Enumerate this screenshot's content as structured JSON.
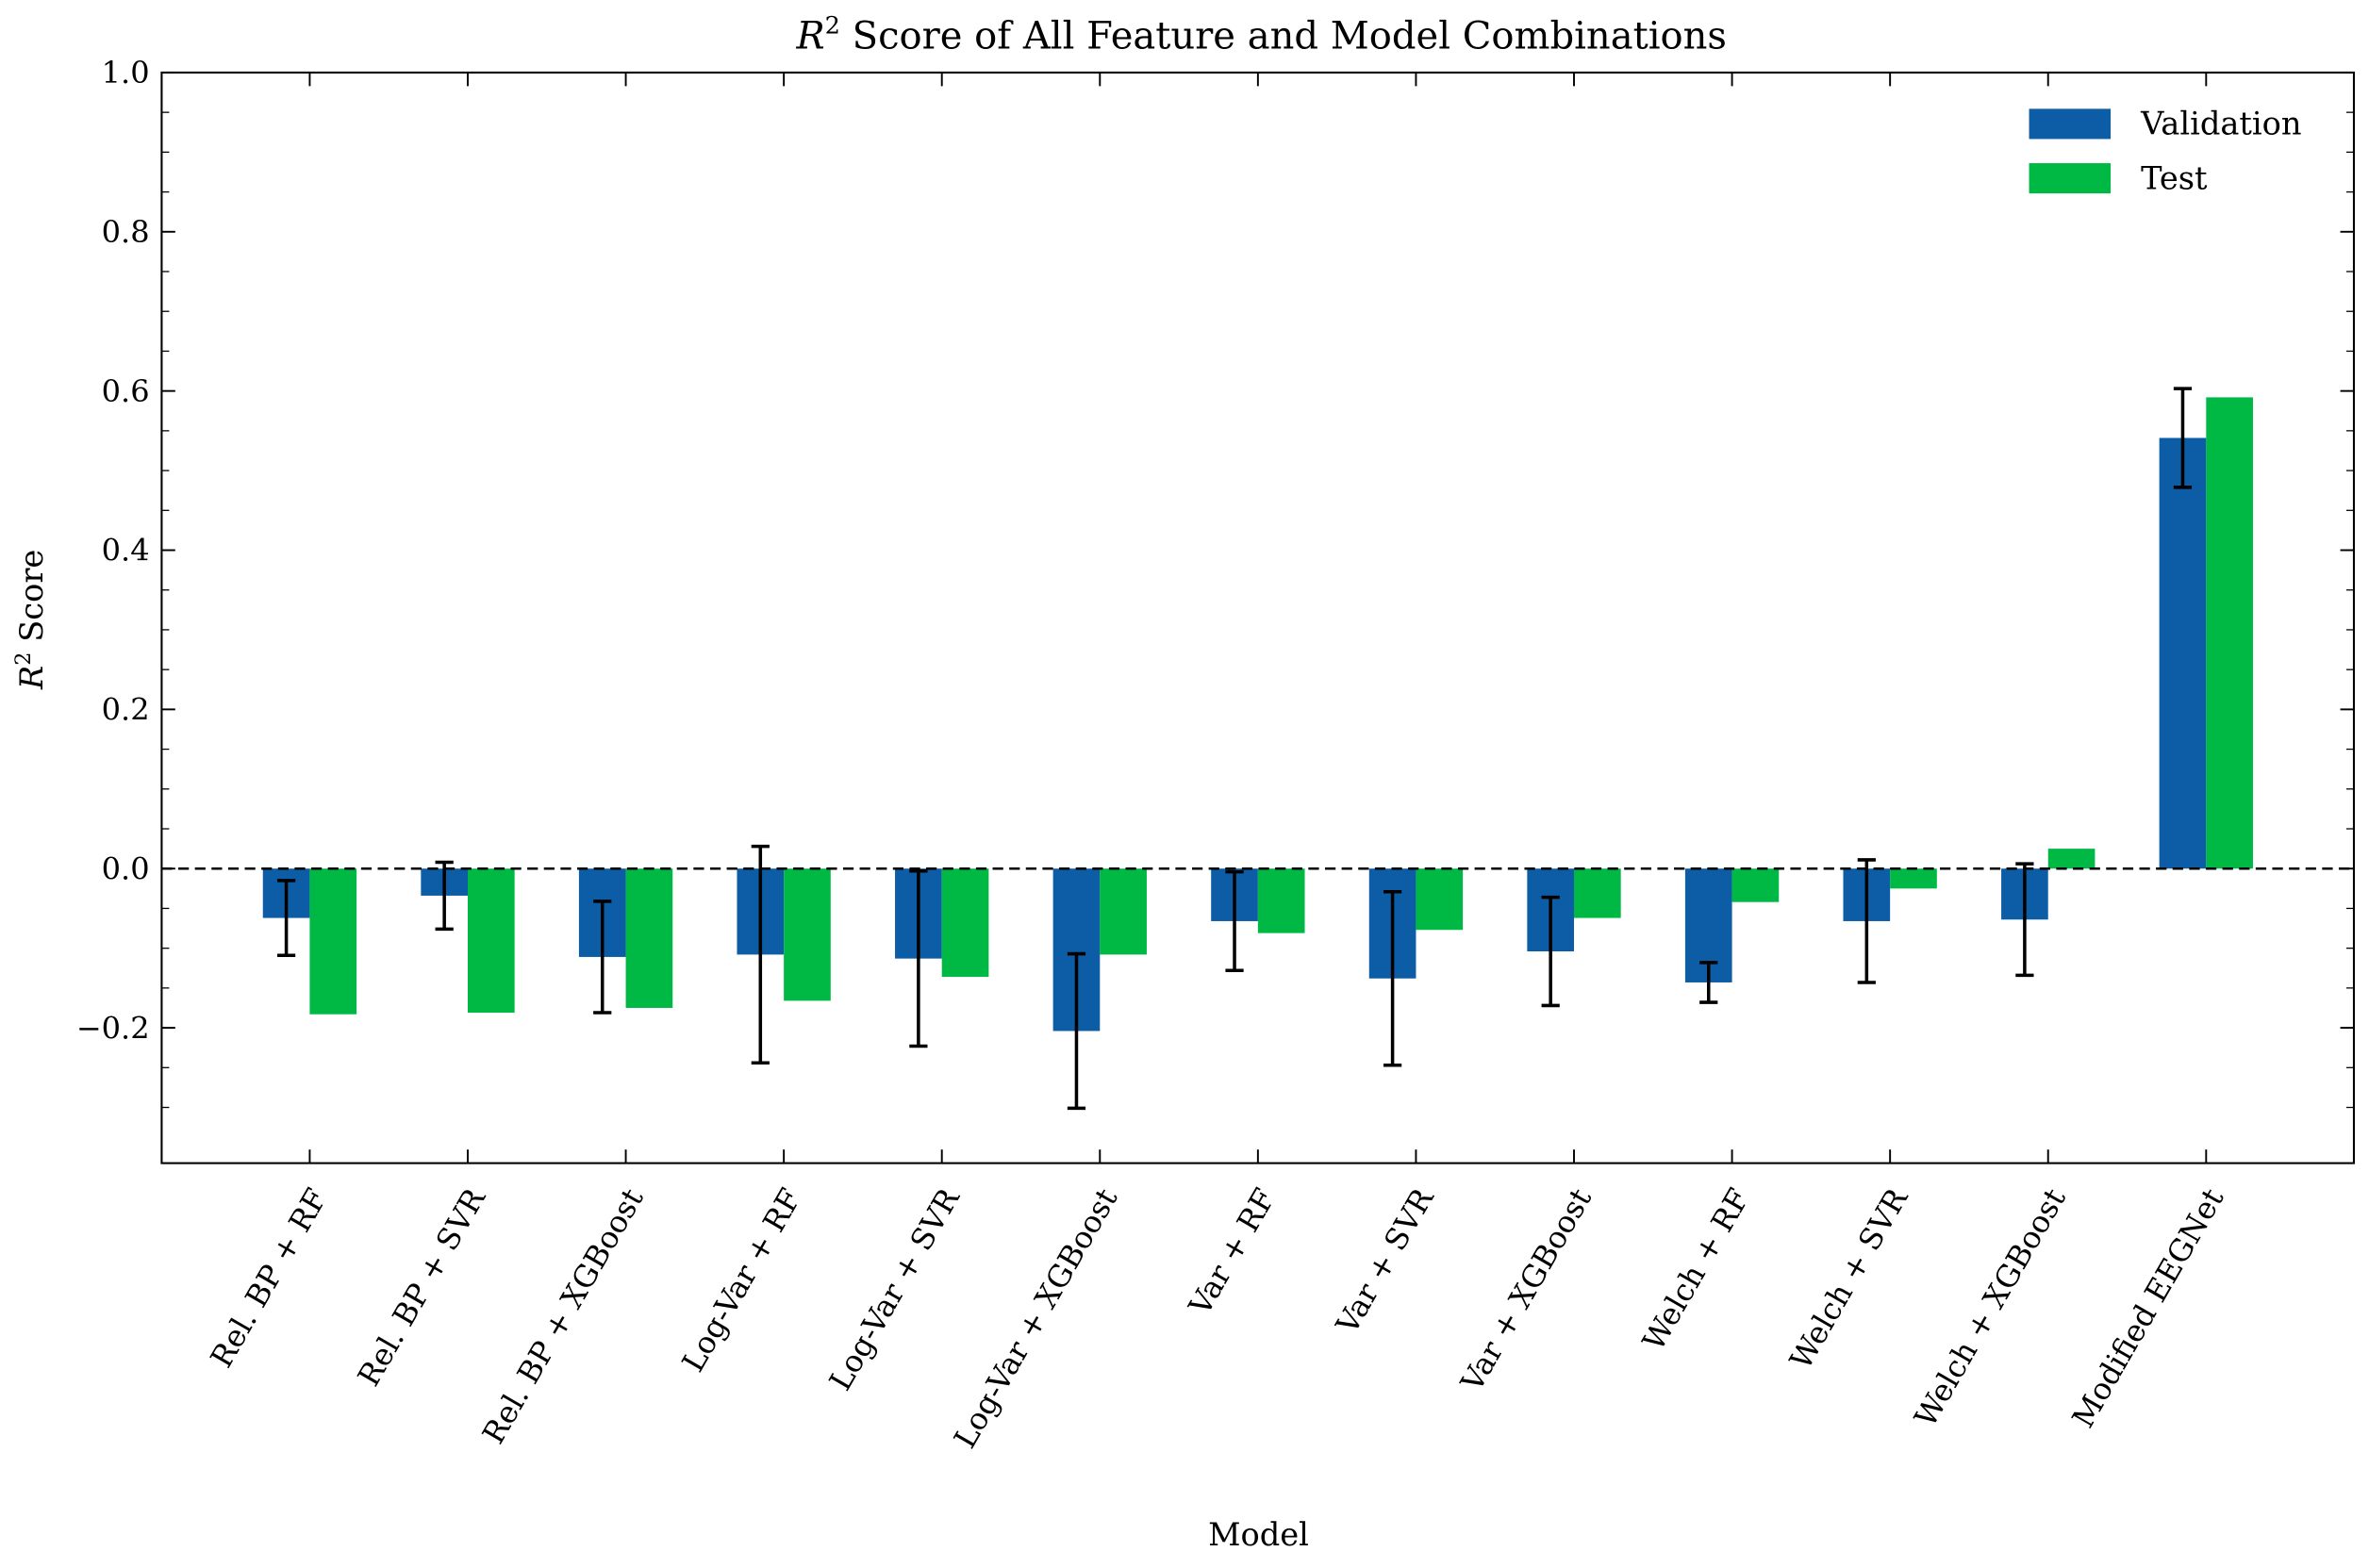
{
  "chart_data": {
    "type": "bar",
    "title": {
      "var": "R",
      "sup": "2",
      "rest": " Score of All Feature and Model Combinations"
    },
    "xlabel": "Model",
    "ylabel": {
      "var": "R",
      "sup": "2",
      "rest": " Score"
    },
    "ylim": [
      -0.37,
      1.0
    ],
    "yticks": [
      -0.2,
      0.0,
      0.2,
      0.4,
      0.6,
      0.8,
      1.0
    ],
    "ytick_labels": [
      "−0.2",
      "0.0",
      "0.2",
      "0.4",
      "0.6",
      "0.8",
      "1.0"
    ],
    "grid": false,
    "legend_position": "top-right",
    "reference_line": {
      "y": 0.0,
      "style": "dashed",
      "color": "#000000"
    },
    "categories": [
      "Rel. BP + RF",
      "Rel. BP + SVR",
      "Rel. BP + XGBoost",
      "Log-Var + RF",
      "Log-Var + SVR",
      "Log-Var + XGBoost",
      "Var + RF",
      "Var + SVR",
      "Var + XGBoost",
      "Welch + RF",
      "Welch + SVR",
      "Welch + XGBoost",
      "Modified EEGNet"
    ],
    "series": [
      {
        "name": "Validation",
        "color": "#0C5DA5",
        "values": [
          -0.062,
          -0.034,
          -0.111,
          -0.108,
          -0.113,
          -0.204,
          -0.066,
          -0.138,
          -0.104,
          -0.143,
          -0.066,
          -0.064,
          0.541
        ],
        "errors": [
          0.047,
          0.042,
          0.07,
          0.136,
          0.11,
          0.097,
          0.062,
          0.109,
          0.068,
          0.025,
          0.077,
          0.07,
          0.062
        ]
      },
      {
        "name": "Test",
        "color": "#00B945",
        "values": [
          -0.183,
          -0.181,
          -0.175,
          -0.166,
          -0.136,
          -0.108,
          -0.081,
          -0.077,
          -0.062,
          -0.042,
          -0.025,
          0.025,
          0.592
        ]
      }
    ]
  }
}
